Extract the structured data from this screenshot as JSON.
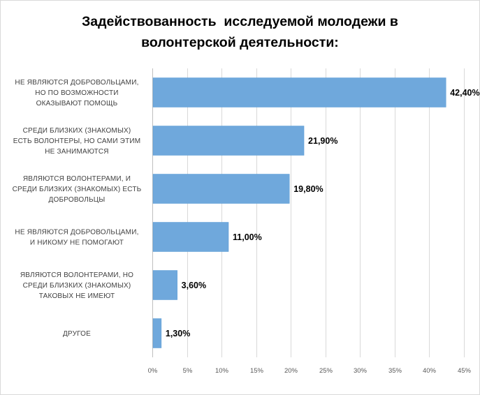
{
  "chart_data": {
    "type": "bar",
    "orientation": "horizontal",
    "title_lines": [
      "Задействованность  исследуемой молодежи в",
      "волонтерской деятельности:"
    ],
    "categories": [
      [
        "НЕ ЯВЛЯЮТСЯ  ДОБРОВОЛЬЦАМИ,",
        "НО ПО ВОЗМОЖНОСТИ",
        "ОКАЗЫВАЮТ  ПОМОЩЬ"
      ],
      [
        "СРЕДИ  БЛИЗКИХ  (ЗНАКОМЫХ)",
        "ЕСТЬ ВОЛОНТЕРЫ, НО САМИ  ЭТИМ",
        "НЕ ЗАНИМАЮТСЯ"
      ],
      [
        "ЯВЛЯЮТСЯ  ВОЛОНТЕРАМИ,  И",
        "СРЕДИ БЛИЗКИХ  (ЗНАКОМЫХ)  ЕСТЬ",
        "ДОБРОВОЛЬЦЫ"
      ],
      [
        "НЕ ЯВЛЯЮТСЯ  ДОБРОВОЛЬЦАМИ,",
        "И НИКОМУ НЕ ПОМОГАЮТ"
      ],
      [
        "ЯВЛЯЮТСЯ  ВОЛОНТЕРАМИ,  НО",
        "СРЕДИ   БЛИЗКИХ  (ЗНАКОМЫХ)",
        "ТАКОВЫХ  НЕ ИМЕЮТ"
      ],
      [
        "ДРУГОЕ"
      ]
    ],
    "values": [
      42.4,
      21.9,
      19.8,
      11.0,
      3.6,
      1.3
    ],
    "data_labels": [
      "42,40%",
      "21,90%",
      "19,80%",
      "11,00%",
      "3,60%",
      "1,30%"
    ],
    "xlim": [
      0,
      45
    ],
    "x_ticks": [
      0,
      5,
      10,
      15,
      20,
      25,
      30,
      35,
      40,
      45
    ],
    "x_tick_labels": [
      "0%",
      "5%",
      "10%",
      "15%",
      "20%",
      "25%",
      "30%",
      "35%",
      "40%",
      "45%"
    ],
    "grid": "vertical",
    "legend": "none",
    "colors": {
      "bar": "#6fa8dc",
      "bar_stroke": "#5b9bd5",
      "grid": "#d9d9d9",
      "axis": "#bfbfbf"
    }
  }
}
